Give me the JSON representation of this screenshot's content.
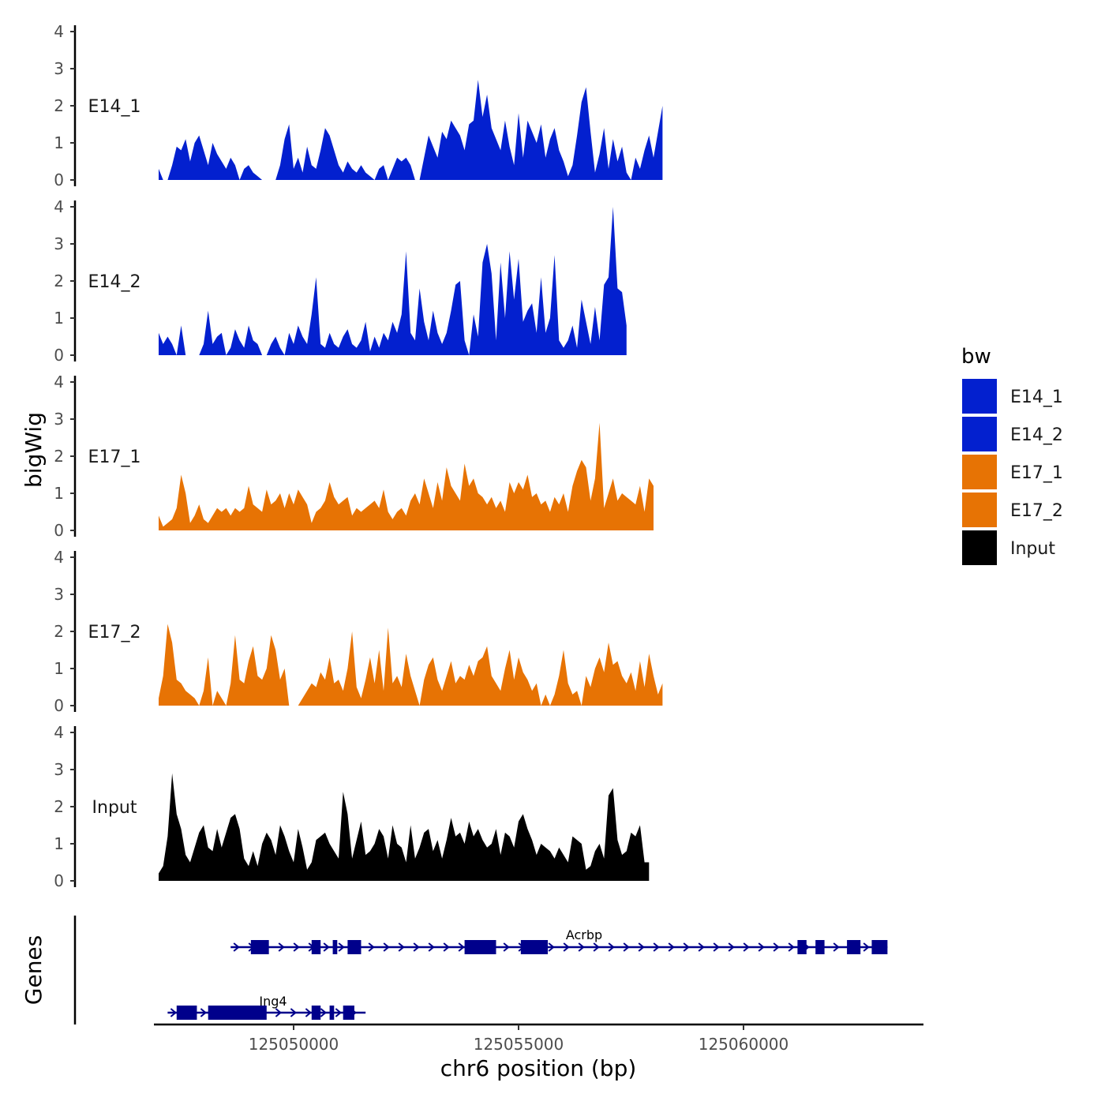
{
  "chart_data": {
    "type": "area",
    "y_title": "bigWig",
    "genes_title": "Genes",
    "xlabel": "chr6 position (bp)",
    "x_ticks": [
      125050000,
      125055000,
      125060000
    ],
    "x_tick_labels": [
      "125050000",
      "125055000",
      "125060000"
    ],
    "xlim": [
      125046800,
      125063600
    ],
    "ylim": [
      0,
      4
    ],
    "y_ticks": [
      0,
      1,
      2,
      3,
      4
    ],
    "y_tick_labels": [
      "0",
      "1",
      "2",
      "3",
      "4"
    ],
    "legend": {
      "title": "bw",
      "placement": "right",
      "entries": [
        {
          "label": "E14_1",
          "color": "#0320cf"
        },
        {
          "label": "E14_2",
          "color": "#0320cf"
        },
        {
          "label": "E17_1",
          "color": "#e77304"
        },
        {
          "label": "E17_2",
          "color": "#e77304"
        },
        {
          "label": "Input",
          "color": "#000000"
        }
      ]
    },
    "x_start": 125047000,
    "x_step": 100,
    "tracks": [
      {
        "name": "E14_1",
        "color": "#0320cf",
        "values": [
          0.3,
          0,
          0,
          0.4,
          0.9,
          0.8,
          1.1,
          0.5,
          1.0,
          1.2,
          0.8,
          0.4,
          1.0,
          0.7,
          0.5,
          0.3,
          0.6,
          0.4,
          0,
          0.3,
          0.4,
          0.2,
          0.1,
          0,
          0,
          0,
          0,
          0.4,
          1.1,
          1.5,
          0.3,
          0.6,
          0.2,
          0.9,
          0.4,
          0.3,
          0.8,
          1.4,
          1.2,
          0.8,
          0.4,
          0.2,
          0.5,
          0.3,
          0.2,
          0.4,
          0.2,
          0.1,
          0,
          0.3,
          0.4,
          0,
          0.3,
          0.6,
          0.5,
          0.6,
          0.4,
          0,
          0,
          0.6,
          1.2,
          0.9,
          0.6,
          1.3,
          1.1,
          1.6,
          1.4,
          1.2,
          0.8,
          1.5,
          1.6,
          2.7,
          1.7,
          2.3,
          1.4,
          1.1,
          0.8,
          1.6,
          0.9,
          0.4,
          1.8,
          0.6,
          1.6,
          1.3,
          1.0,
          1.5,
          0.6,
          1.1,
          1.4,
          0.8,
          0.5,
          0.1,
          0.4,
          1.2,
          2.1,
          2.5,
          1.3,
          0.2,
          0.7,
          1.4,
          0.3,
          1.1,
          0.5,
          0.9,
          0.2,
          0,
          0.6,
          0.3,
          0.8,
          1.2,
          0.6,
          1.3,
          2.0
        ]
      },
      {
        "name": "E14_2",
        "color": "#0320cf",
        "values": [
          0.6,
          0.3,
          0.5,
          0.3,
          0,
          0.8,
          0,
          0,
          0,
          0,
          0.3,
          1.2,
          0.3,
          0.5,
          0.6,
          0,
          0.2,
          0.7,
          0.4,
          0.2,
          0.8,
          0.4,
          0.3,
          0,
          0,
          0.3,
          0.5,
          0.2,
          0,
          0.6,
          0.3,
          0.8,
          0.5,
          0.3,
          1.1,
          2.1,
          0.3,
          0.2,
          0.6,
          0.3,
          0.2,
          0.5,
          0.7,
          0.3,
          0.2,
          0.4,
          0.9,
          0.1,
          0.5,
          0.2,
          0.6,
          0.4,
          0.9,
          0.6,
          1.1,
          2.8,
          0.6,
          0.4,
          1.8,
          0.9,
          0.4,
          1.2,
          0.6,
          0.3,
          0.6,
          1.2,
          1.9,
          2.0,
          0.4,
          0,
          1.1,
          0.5,
          2.5,
          3.0,
          2.2,
          0.4,
          2.5,
          1.0,
          2.8,
          1.5,
          2.6,
          0.9,
          1.2,
          1.4,
          0.6,
          2.1,
          0.6,
          1.0,
          2.7,
          0.4,
          0.2,
          0.4,
          0.8,
          0.2,
          1.5,
          0.9,
          0.3,
          1.3,
          0.4,
          1.9,
          2.1,
          4.0,
          1.8,
          1.7,
          0.8
        ]
      },
      {
        "name": "E17_1",
        "color": "#e77304",
        "values": [
          0.4,
          0.1,
          0.2,
          0.3,
          0.6,
          1.5,
          1.0,
          0.2,
          0.4,
          0.7,
          0.3,
          0.2,
          0.4,
          0.6,
          0.5,
          0.6,
          0.4,
          0.6,
          0.5,
          0.6,
          1.2,
          0.7,
          0.6,
          0.5,
          1.1,
          0.7,
          0.8,
          1.0,
          0.6,
          1.0,
          0.7,
          1.1,
          0.9,
          0.7,
          0.2,
          0.5,
          0.6,
          0.8,
          1.3,
          0.9,
          0.7,
          0.8,
          0.9,
          0.4,
          0.6,
          0.5,
          0.6,
          0.7,
          0.8,
          0.6,
          1.1,
          0.5,
          0.3,
          0.5,
          0.6,
          0.4,
          0.8,
          1.0,
          0.7,
          1.4,
          1.0,
          0.6,
          1.3,
          0.8,
          1.7,
          1.2,
          1.0,
          0.8,
          1.8,
          1.2,
          1.4,
          1.0,
          0.9,
          0.7,
          0.9,
          0.6,
          0.8,
          0.5,
          1.3,
          1.0,
          1.3,
          1.1,
          1.5,
          0.9,
          1.0,
          0.7,
          0.8,
          0.5,
          0.9,
          0.7,
          1.0,
          0.5,
          1.2,
          1.6,
          1.9,
          1.7,
          0.8,
          1.4,
          2.9,
          0.6,
          1.0,
          1.4,
          0.8,
          1.0,
          0.9,
          0.8,
          0.7,
          1.2,
          0.5,
          1.4,
          1.2
        ]
      },
      {
        "name": "E17_2",
        "color": "#e77304",
        "values": [
          0.2,
          0.8,
          2.2,
          1.7,
          0.7,
          0.6,
          0.4,
          0.3,
          0.2,
          0,
          0.4,
          1.3,
          0,
          0.4,
          0.2,
          0,
          0.6,
          1.9,
          0.7,
          0.6,
          1.2,
          1.6,
          0.8,
          0.7,
          1.0,
          1.9,
          1.5,
          0.7,
          1.0,
          0,
          0,
          0,
          0.2,
          0.4,
          0.6,
          0.5,
          0.9,
          0.7,
          1.3,
          0.6,
          0.7,
          0.4,
          1.0,
          2.0,
          0.5,
          0.2,
          0.7,
          1.3,
          0.6,
          1.5,
          0.4,
          2.1,
          0.6,
          0.8,
          0.5,
          1.4,
          0.8,
          0.4,
          0,
          0.7,
          1.1,
          1.3,
          0.7,
          0.4,
          0.8,
          1.2,
          0.6,
          0.8,
          0.7,
          1.1,
          0.8,
          1.2,
          1.3,
          1.6,
          0.8,
          0.6,
          0.4,
          1.0,
          1.5,
          0.7,
          1.3,
          0.9,
          0.7,
          0.4,
          0.6,
          0,
          0.3,
          0,
          0.3,
          0.8,
          1.5,
          0.6,
          0.3,
          0.4,
          0,
          0.8,
          0.5,
          1.0,
          1.3,
          0.9,
          1.7,
          1.1,
          1.2,
          0.8,
          0.6,
          0.9,
          0.4,
          1.2,
          0.5,
          1.4,
          0.8,
          0.3,
          0.6
        ]
      },
      {
        "name": "Input",
        "color": "#000000",
        "values": [
          0.2,
          0.4,
          1.2,
          2.9,
          1.8,
          1.4,
          0.7,
          0.5,
          0.9,
          1.3,
          1.5,
          0.9,
          0.8,
          1.4,
          0.9,
          1.3,
          1.7,
          1.8,
          1.4,
          0.6,
          0.4,
          0.8,
          0.4,
          1.0,
          1.3,
          1.1,
          0.7,
          1.5,
          1.2,
          0.8,
          0.5,
          1.4,
          0.9,
          0.3,
          0.5,
          1.1,
          1.2,
          1.3,
          1.0,
          0.8,
          0.6,
          2.4,
          1.8,
          0.6,
          1.1,
          1.6,
          0.7,
          0.8,
          1.0,
          1.4,
          1.2,
          0.6,
          1.5,
          1.0,
          0.9,
          0.5,
          1.5,
          0.6,
          0.9,
          1.3,
          1.4,
          0.8,
          1.1,
          0.6,
          1.1,
          1.7,
          1.2,
          1.3,
          1.0,
          1.6,
          1.2,
          1.4,
          1.1,
          0.9,
          1.0,
          1.4,
          0.7,
          1.3,
          1.2,
          0.9,
          1.6,
          1.8,
          1.4,
          1.1,
          0.7,
          1.0,
          0.9,
          0.8,
          0.6,
          0.9,
          0.7,
          0.5,
          1.2,
          1.1,
          1.0,
          0.3,
          0.4,
          0.8,
          1.0,
          0.6,
          2.3,
          2.5,
          1.1,
          0.7,
          0.8,
          1.3,
          1.2,
          1.5,
          0.5,
          0.5
        ]
      }
    ],
    "genes": [
      {
        "name": "Acrbp",
        "strand": "+",
        "start": 125048600,
        "end": 125063200,
        "exons": [
          [
            125049050,
            125049450
          ],
          [
            125050400,
            125050600
          ],
          [
            125050870,
            125050970
          ],
          [
            125051200,
            125051500
          ],
          [
            125053800,
            125054500
          ],
          [
            125055050,
            125055650
          ],
          [
            125061200,
            125061400
          ],
          [
            125061600,
            125061800
          ],
          [
            125062300,
            125062600
          ],
          [
            125062850,
            125063200
          ]
        ]
      },
      {
        "name": "Ing4",
        "strand": "+",
        "start": 125047200,
        "end": 125051600,
        "exons": [
          [
            125047400,
            125047850
          ],
          [
            125048100,
            125049400
          ],
          [
            125050400,
            125050600
          ],
          [
            125050800,
            125050900
          ],
          [
            125051100,
            125051350
          ]
        ]
      }
    ]
  }
}
